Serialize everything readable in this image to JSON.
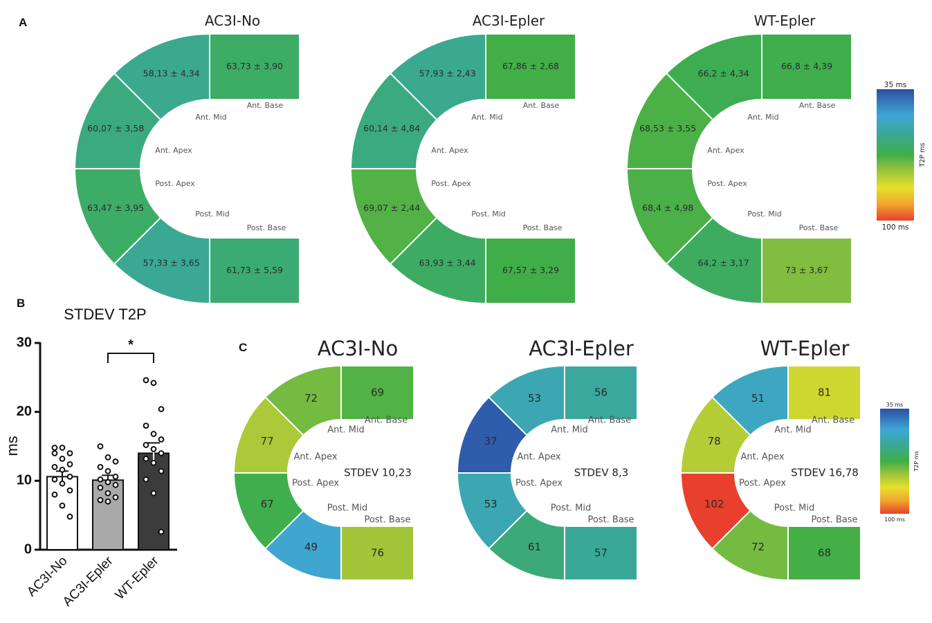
{
  "panel_labels": {
    "a": "A",
    "b": "B",
    "c": "C"
  },
  "segment_labels": {
    "ant_base": "Ant. Base",
    "ant_mid": "Ant. Mid",
    "ant_apex": "Ant. Apex",
    "post_apex": "Post. Apex",
    "post_mid": "Post. Mid",
    "post_base": "Post. Base"
  },
  "colorbar": {
    "min_label": "35 ms",
    "max_label": "100 ms",
    "axis_label": "T2P ms",
    "min_ms": 35,
    "max_ms": 100
  },
  "chart_data": [
    {
      "type": "heatmap",
      "panel": "A",
      "description_units": "T2P ms (mean ± SEM)",
      "maps": [
        {
          "title": "AC3I-No",
          "segments": [
            {
              "segment": "ant_base",
              "mean": 63.73,
              "label": "63,73 ± 3,90"
            },
            {
              "segment": "ant_mid",
              "mean": 58.13,
              "label": "58,13 ± 4,34"
            },
            {
              "segment": "ant_apex",
              "mean": 60.07,
              "label": "60,07 ± 3,58"
            },
            {
              "segment": "post_apex",
              "mean": 63.47,
              "label": "63,47 ± 3,95"
            },
            {
              "segment": "post_mid",
              "mean": 57.33,
              "label": "57,33 ± 3,65"
            },
            {
              "segment": "post_base",
              "mean": 61.73,
              "label": "61,73 ± 5,59"
            }
          ]
        },
        {
          "title": "AC3I-Epler",
          "segments": [
            {
              "segment": "ant_base",
              "mean": 67.86,
              "label": "67,86 ± 2,68"
            },
            {
              "segment": "ant_mid",
              "mean": 57.93,
              "label": "57,93 ± 2,43"
            },
            {
              "segment": "ant_apex",
              "mean": 60.14,
              "label": "60,14 ± 4,84"
            },
            {
              "segment": "post_apex",
              "mean": 69.07,
              "label": "69,07 ± 2,44"
            },
            {
              "segment": "post_mid",
              "mean": 63.93,
              "label": "63,93 ± 3,44"
            },
            {
              "segment": "post_base",
              "mean": 67.57,
              "label": "67,57 ± 3,29"
            }
          ]
        },
        {
          "title": "WT-Epler",
          "segments": [
            {
              "segment": "ant_base",
              "mean": 66.8,
              "label": "66,8 ± 4,39"
            },
            {
              "segment": "ant_mid",
              "mean": 66.2,
              "label": "66,2 ± 4,34"
            },
            {
              "segment": "ant_apex",
              "mean": 68.53,
              "label": "68,53 ± 3,55"
            },
            {
              "segment": "post_apex",
              "mean": 68.4,
              "label": "68,4 ± 4,98"
            },
            {
              "segment": "post_mid",
              "mean": 64.2,
              "label": "64,2 ± 3,17"
            },
            {
              "segment": "post_base",
              "mean": 73,
              "label": "73 ± 3,67"
            }
          ]
        }
      ]
    },
    {
      "type": "bar",
      "panel": "B",
      "title": "STDEV T2P",
      "ylabel": "ms",
      "ylim": [
        0,
        30
      ],
      "yticks": [
        0,
        10,
        20,
        30
      ],
      "categories": [
        "AC3I-No",
        "AC3I-Epler",
        "WT-Epler"
      ],
      "bar_colors": [
        "#ffffff",
        "#a9a9a9",
        "#3c3c3c"
      ],
      "values": [
        10.6,
        10.1,
        14.0
      ],
      "sem": [
        0.8,
        0.7,
        1.5
      ],
      "points": [
        [
          14.8,
          14.8,
          14.0,
          14.0,
          13.2,
          12.4,
          12.0,
          11.6,
          10.6,
          10.2,
          9.6,
          8.6,
          8.0,
          6.4,
          4.8
        ],
        [
          15.0,
          13.4,
          12.8,
          12.0,
          11.4,
          10.6,
          10.2,
          9.8,
          9.4,
          9.0,
          8.2,
          7.6,
          7.2,
          7.0
        ],
        [
          24.6,
          24.2,
          20.4,
          18.0,
          16.8,
          16.0,
          15.2,
          14.6,
          14.0,
          13.2,
          12.6,
          11.4,
          10.2,
          8.2,
          2.6
        ]
      ],
      "significance": {
        "between": [
          "AC3I-Epler",
          "WT-Epler"
        ],
        "label": "*"
      }
    },
    {
      "type": "heatmap",
      "panel": "C",
      "description_units": "T2P ms",
      "maps": [
        {
          "title": "AC3I-No",
          "stdev_label": "STDEV 10,23",
          "segments": [
            {
              "segment": "ant_base",
              "value": 69
            },
            {
              "segment": "ant_mid",
              "value": 72
            },
            {
              "segment": "ant_apex",
              "value": 77
            },
            {
              "segment": "post_apex",
              "value": 67
            },
            {
              "segment": "post_mid",
              "value": 49
            },
            {
              "segment": "post_base",
              "value": 76
            }
          ]
        },
        {
          "title": "AC3I-Epler",
          "stdev_label": "STDEV 8,3",
          "segments": [
            {
              "segment": "ant_base",
              "value": 56
            },
            {
              "segment": "ant_mid",
              "value": 53
            },
            {
              "segment": "ant_apex",
              "value": 37
            },
            {
              "segment": "post_apex",
              "value": 53
            },
            {
              "segment": "post_mid",
              "value": 61
            },
            {
              "segment": "post_base",
              "value": 57
            }
          ]
        },
        {
          "title": "WT-Epler",
          "stdev_label": "STDEV 16,78",
          "segments": [
            {
              "segment": "ant_base",
              "value": 81
            },
            {
              "segment": "ant_mid",
              "value": 51
            },
            {
              "segment": "ant_apex",
              "value": 78
            },
            {
              "segment": "post_apex",
              "value": 102
            },
            {
              "segment": "post_mid",
              "value": 72
            },
            {
              "segment": "post_base",
              "value": 68
            }
          ]
        }
      ]
    }
  ]
}
